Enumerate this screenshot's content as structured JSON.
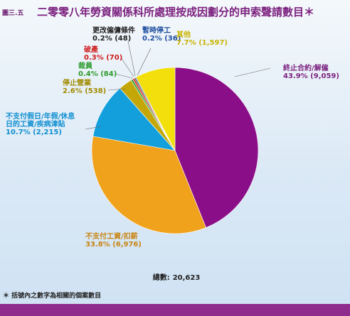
{
  "figure_label": "圖三.五",
  "title": "二零零八年勞資關係科所處理按成因劃分的申索聲請數目＊",
  "chart_data": {
    "type": "pie",
    "title": "二零零八年勞資關係科所處理按成因劃分的申索聲請數目＊",
    "slices": [
      {
        "label": "終止合約/解僱",
        "lines": [
          "終止合約/解僱"
        ],
        "percent": "43.9%",
        "count": "9,059",
        "value": 9059,
        "color": "#8b0e89",
        "text_color": "#7b1f7e"
      },
      {
        "label": "不支付工資/扣薪",
        "lines": [
          "不支付工資/扣薪"
        ],
        "percent": "33.8%",
        "count": "6,976",
        "value": 6976,
        "color": "#f0a21c",
        "text_color": "#c98412"
      },
      {
        "label": "不支付假日/年假/休息日的工資/疾病津貼",
        "lines": [
          "不支付假日/年假/休息",
          "日的工資/疾病津貼"
        ],
        "percent": "10.7%",
        "count": "2,215",
        "value": 2215,
        "color": "#129fdc",
        "text_color": "#0f8fd0"
      },
      {
        "label": "停止營業",
        "lines": [
          "停止營業"
        ],
        "percent": "2.6%",
        "count": "538",
        "value": 538,
        "color": "#c4a707",
        "text_color": "#a08a00"
      },
      {
        "label": "裁員",
        "lines": [
          "裁員"
        ],
        "percent": "0.4%",
        "count": "84",
        "value": 84,
        "color": "#3aa53a",
        "text_color": "#2e9a2e"
      },
      {
        "label": "破產",
        "lines": [
          "破產"
        ],
        "percent": "0.3%",
        "count": "70",
        "value": 70,
        "color": "#e02424",
        "text_color": "#d01c1c"
      },
      {
        "label": "更改僱傭條件",
        "lines": [
          "更改僱傭條件"
        ],
        "percent": "0.2%",
        "count": "48",
        "value": 48,
        "color": "#333333",
        "text_color": "#222222"
      },
      {
        "label": "暫時停工",
        "lines": [
          "暫時停工"
        ],
        "percent": "0.2%",
        "count": "36",
        "value": 36,
        "color": "#1f3f9a",
        "text_color": "#1f4ea0"
      },
      {
        "label": "其他",
        "lines": [
          "其他"
        ],
        "percent": "7.7%",
        "count": "1,597",
        "value": 1597,
        "color": "#f2df0c",
        "text_color": "#c9b400"
      }
    ],
    "total_label": "總數:",
    "total_value": "20,623"
  },
  "footnote": "＊ 括號內之數字為相關的個案數目"
}
